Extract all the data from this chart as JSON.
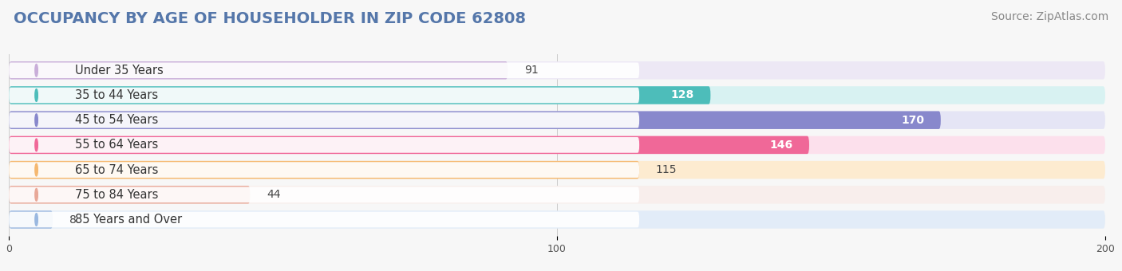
{
  "title": "OCCUPANCY BY AGE OF HOUSEHOLDER IN ZIP CODE 62808",
  "source": "Source: ZipAtlas.com",
  "categories": [
    "Under 35 Years",
    "35 to 44 Years",
    "45 to 54 Years",
    "55 to 64 Years",
    "65 to 74 Years",
    "75 to 84 Years",
    "85 Years and Over"
  ],
  "values": [
    91,
    128,
    170,
    146,
    115,
    44,
    8
  ],
  "bar_colors": [
    "#c9aed9",
    "#4dbdba",
    "#8888cc",
    "#f06898",
    "#f5b870",
    "#e8a898",
    "#9ab8e0"
  ],
  "bg_colors": [
    "#ede8f5",
    "#d8f2f2",
    "#e5e5f5",
    "#fce0ec",
    "#fdebd0",
    "#f8eeec",
    "#e2ecf8"
  ],
  "xlim": [
    0,
    200
  ],
  "xticks": [
    0,
    100,
    200
  ],
  "title_fontsize": 14,
  "source_fontsize": 10,
  "label_fontsize": 10.5,
  "value_fontsize": 10,
  "bar_height": 0.72,
  "value_white_threshold": 120,
  "background_color": "#f7f7f7"
}
